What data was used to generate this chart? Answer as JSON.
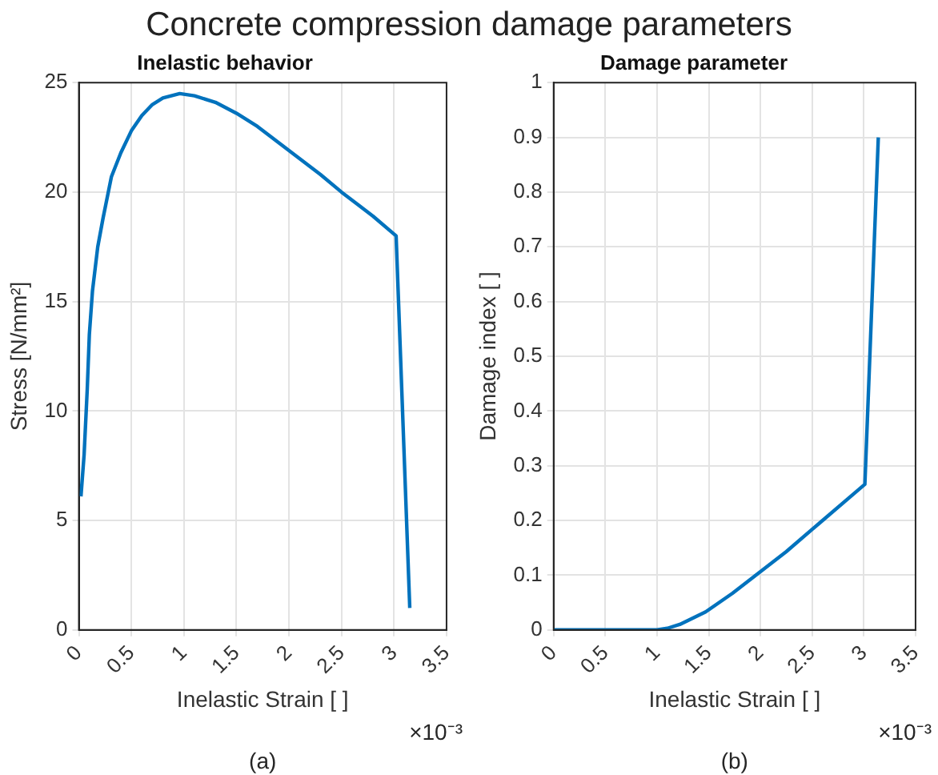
{
  "chart_data": [
    {
      "type": "line",
      "title": "Concrete compression damage parameters",
      "subtitle": "Inelastic behavior",
      "xlabel": "Inelastic Strain [ ]",
      "ylabel": "Stress [N/mm²]",
      "annotations": [
        "×10⁻³",
        "(a)"
      ],
      "x": [
        0.02,
        0.05,
        0.08,
        0.1,
        0.13,
        0.18,
        0.23,
        0.31,
        0.4,
        0.5,
        0.6,
        0.7,
        0.8,
        0.96,
        1.1,
        1.3,
        1.5,
        1.7,
        2,
        2.3,
        2.5,
        2.8,
        3.02,
        3.15
      ],
      "series": [
        {
          "color": "#0072bd",
          "values": [
            6.1,
            8,
            11,
            13.5,
            15.5,
            17.5,
            18.8,
            20.7,
            21.8,
            22.8,
            23.5,
            24,
            24.3,
            24.5,
            24.4,
            24.1,
            23.6,
            23,
            21.9,
            20.8,
            20,
            18.9,
            18,
            1
          ]
        }
      ],
      "xlim": [
        0,
        3.5
      ],
      "xticks": [
        0,
        0.5,
        1,
        1.5,
        2,
        2.5,
        3,
        3.5
      ],
      "ylim": [
        0,
        25
      ],
      "yticks": [
        0,
        5,
        10,
        15,
        20,
        25
      ],
      "grid": true,
      "legend": false,
      "marker": "none",
      "line_style": "solid"
    },
    {
      "type": "line",
      "subtitle": "Damage parameter",
      "xlabel": "Inelastic Strain [ ]",
      "ylabel": "Damage index [ ]",
      "annotations": [
        "×10⁻³",
        "(b)"
      ],
      "x": [
        0,
        0.5,
        1,
        1.1,
        1.22,
        1.47,
        1.73,
        1.99,
        2.25,
        2.57,
        3.01,
        3.14
      ],
      "series": [
        {
          "color": "#0072bd",
          "values": [
            0,
            0,
            0,
            0.003,
            0.01,
            0.033,
            0.067,
            0.105,
            0.143,
            0.195,
            0.266,
            0.9
          ]
        }
      ],
      "xlim": [
        0,
        3.5
      ],
      "xticks": [
        0,
        0.5,
        1,
        1.5,
        2,
        2.5,
        3,
        3.5
      ],
      "ylim": [
        0,
        1
      ],
      "yticks": [
        0,
        0.1,
        0.2,
        0.3,
        0.4,
        0.5,
        0.6,
        0.7,
        0.8,
        0.9,
        1
      ],
      "grid": true,
      "legend": false,
      "marker": "none",
      "line_style": "solid"
    }
  ]
}
